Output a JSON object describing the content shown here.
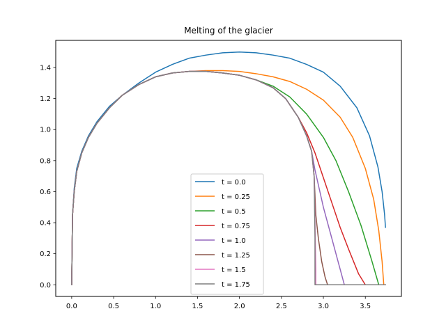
{
  "chart_data": {
    "type": "line",
    "title": "Melting of the glacier",
    "xlabel": "",
    "ylabel": "",
    "xlim": [
      -0.19,
      3.93
    ],
    "ylim": [
      -0.075,
      1.575
    ],
    "xticks": [
      0.0,
      0.5,
      1.0,
      1.5,
      2.0,
      2.5,
      3.0,
      3.5
    ],
    "xtick_labels": [
      "0.0",
      "0.5",
      "1.0",
      "1.5",
      "2.0",
      "2.5",
      "3.0",
      "3.5"
    ],
    "yticks": [
      0.0,
      0.2,
      0.4,
      0.6,
      0.8,
      1.0,
      1.2,
      1.4
    ],
    "ytick_labels": [
      "0.0",
      "0.2",
      "0.4",
      "0.6",
      "0.8",
      "1.0",
      "1.2",
      "1.4"
    ],
    "grid": false,
    "legend_position": "bottom-center",
    "series": [
      {
        "name": "t = 0.0",
        "color": "#1f77b4",
        "points": [
          [
            0.0,
            0.0
          ],
          [
            0.01,
            0.45
          ],
          [
            0.03,
            0.62
          ],
          [
            0.06,
            0.75
          ],
          [
            0.12,
            0.86
          ],
          [
            0.2,
            0.96
          ],
          [
            0.3,
            1.05
          ],
          [
            0.45,
            1.15
          ],
          [
            0.6,
            1.22
          ],
          [
            0.8,
            1.3
          ],
          [
            1.0,
            1.37
          ],
          [
            1.2,
            1.42
          ],
          [
            1.4,
            1.46
          ],
          [
            1.6,
            1.48
          ],
          [
            1.8,
            1.495
          ],
          [
            2.0,
            1.5
          ],
          [
            2.2,
            1.495
          ],
          [
            2.4,
            1.48
          ],
          [
            2.6,
            1.46
          ],
          [
            2.8,
            1.42
          ],
          [
            3.0,
            1.37
          ],
          [
            3.2,
            1.28
          ],
          [
            3.4,
            1.14
          ],
          [
            3.55,
            0.96
          ],
          [
            3.65,
            0.76
          ],
          [
            3.7,
            0.6
          ],
          [
            3.73,
            0.45
          ],
          [
            3.74,
            0.37
          ]
        ]
      },
      {
        "name": "t = 0.25",
        "color": "#ff7f0e",
        "points": [
          [
            0.0,
            0.0
          ],
          [
            0.01,
            0.45
          ],
          [
            0.03,
            0.6
          ],
          [
            0.06,
            0.73
          ],
          [
            0.12,
            0.85
          ],
          [
            0.2,
            0.95
          ],
          [
            0.3,
            1.04
          ],
          [
            0.45,
            1.14
          ],
          [
            0.6,
            1.22
          ],
          [
            0.8,
            1.29
          ],
          [
            1.0,
            1.34
          ],
          [
            1.2,
            1.365
          ],
          [
            1.4,
            1.375
          ],
          [
            1.6,
            1.38
          ],
          [
            1.8,
            1.38
          ],
          [
            2.0,
            1.375
          ],
          [
            2.2,
            1.36
          ],
          [
            2.4,
            1.34
          ],
          [
            2.6,
            1.31
          ],
          [
            2.8,
            1.26
          ],
          [
            3.0,
            1.19
          ],
          [
            3.2,
            1.08
          ],
          [
            3.35,
            0.95
          ],
          [
            3.5,
            0.75
          ],
          [
            3.6,
            0.55
          ],
          [
            3.66,
            0.35
          ],
          [
            3.7,
            0.15
          ],
          [
            3.72,
            0.0
          ],
          [
            3.74,
            0.0
          ]
        ]
      },
      {
        "name": "t = 0.5",
        "color": "#2ca02c",
        "points": [
          [
            0.0,
            0.0
          ],
          [
            0.01,
            0.45
          ],
          [
            0.03,
            0.6
          ],
          [
            0.06,
            0.73
          ],
          [
            0.12,
            0.85
          ],
          [
            0.2,
            0.95
          ],
          [
            0.3,
            1.04
          ],
          [
            0.45,
            1.14
          ],
          [
            0.6,
            1.22
          ],
          [
            0.8,
            1.29
          ],
          [
            1.0,
            1.34
          ],
          [
            1.2,
            1.365
          ],
          [
            1.4,
            1.375
          ],
          [
            1.6,
            1.375
          ],
          [
            1.8,
            1.365
          ],
          [
            2.0,
            1.35
          ],
          [
            2.2,
            1.32
          ],
          [
            2.4,
            1.28
          ],
          [
            2.6,
            1.21
          ],
          [
            2.8,
            1.1
          ],
          [
            3.0,
            0.95
          ],
          [
            3.15,
            0.8
          ],
          [
            3.3,
            0.6
          ],
          [
            3.45,
            0.38
          ],
          [
            3.58,
            0.15
          ],
          [
            3.66,
            0.0
          ],
          [
            3.74,
            0.0
          ]
        ]
      },
      {
        "name": "t = 0.75",
        "color": "#d62728",
        "points": [
          [
            0.0,
            0.0
          ],
          [
            0.01,
            0.45
          ],
          [
            0.03,
            0.6
          ],
          [
            0.06,
            0.73
          ],
          [
            0.12,
            0.85
          ],
          [
            0.2,
            0.95
          ],
          [
            0.3,
            1.04
          ],
          [
            0.45,
            1.14
          ],
          [
            0.6,
            1.22
          ],
          [
            0.8,
            1.29
          ],
          [
            1.0,
            1.34
          ],
          [
            1.2,
            1.365
          ],
          [
            1.4,
            1.375
          ],
          [
            1.6,
            1.375
          ],
          [
            1.8,
            1.365
          ],
          [
            2.0,
            1.35
          ],
          [
            2.2,
            1.32
          ],
          [
            2.4,
            1.27
          ],
          [
            2.55,
            1.2
          ],
          [
            2.7,
            1.08
          ],
          [
            2.8,
            0.98
          ],
          [
            2.9,
            0.85
          ],
          [
            3.0,
            0.69
          ],
          [
            3.1,
            0.53
          ],
          [
            3.2,
            0.37
          ],
          [
            3.3,
            0.23
          ],
          [
            3.42,
            0.07
          ],
          [
            3.5,
            0.0
          ],
          [
            3.74,
            0.0
          ]
        ]
      },
      {
        "name": "t = 1.0",
        "color": "#9467bd",
        "points": [
          [
            0.0,
            0.0
          ],
          [
            0.01,
            0.45
          ],
          [
            0.03,
            0.6
          ],
          [
            0.06,
            0.73
          ],
          [
            0.12,
            0.85
          ],
          [
            0.2,
            0.95
          ],
          [
            0.3,
            1.04
          ],
          [
            0.45,
            1.14
          ],
          [
            0.6,
            1.22
          ],
          [
            0.8,
            1.29
          ],
          [
            1.0,
            1.34
          ],
          [
            1.2,
            1.365
          ],
          [
            1.4,
            1.375
          ],
          [
            1.6,
            1.375
          ],
          [
            1.8,
            1.365
          ],
          [
            2.0,
            1.35
          ],
          [
            2.2,
            1.32
          ],
          [
            2.4,
            1.27
          ],
          [
            2.55,
            1.2
          ],
          [
            2.7,
            1.08
          ],
          [
            2.8,
            0.96
          ],
          [
            2.86,
            0.86
          ],
          [
            2.9,
            0.74
          ],
          [
            2.95,
            0.62
          ],
          [
            3.0,
            0.5
          ],
          [
            3.05,
            0.4
          ],
          [
            3.1,
            0.3
          ],
          [
            3.15,
            0.2
          ],
          [
            3.2,
            0.1
          ],
          [
            3.25,
            0.0
          ],
          [
            3.74,
            0.0
          ]
        ]
      },
      {
        "name": "t = 1.25",
        "color": "#8c564b",
        "points": [
          [
            0.0,
            0.0
          ],
          [
            0.01,
            0.45
          ],
          [
            0.03,
            0.6
          ],
          [
            0.06,
            0.73
          ],
          [
            0.12,
            0.85
          ],
          [
            0.2,
            0.95
          ],
          [
            0.3,
            1.04
          ],
          [
            0.45,
            1.14
          ],
          [
            0.6,
            1.22
          ],
          [
            0.8,
            1.29
          ],
          [
            1.0,
            1.34
          ],
          [
            1.2,
            1.365
          ],
          [
            1.4,
            1.375
          ],
          [
            1.6,
            1.375
          ],
          [
            1.8,
            1.365
          ],
          [
            2.0,
            1.35
          ],
          [
            2.2,
            1.32
          ],
          [
            2.4,
            1.27
          ],
          [
            2.55,
            1.2
          ],
          [
            2.7,
            1.08
          ],
          [
            2.8,
            0.96
          ],
          [
            2.86,
            0.86
          ],
          [
            2.89,
            0.7
          ],
          [
            2.91,
            0.45
          ],
          [
            2.94,
            0.3
          ],
          [
            2.98,
            0.15
          ],
          [
            3.02,
            0.05
          ],
          [
            3.05,
            0.0
          ],
          [
            3.74,
            0.0
          ]
        ]
      },
      {
        "name": "t = 1.5",
        "color": "#e377c2",
        "points": [
          [
            0.0,
            0.0
          ],
          [
            0.01,
            0.45
          ],
          [
            0.03,
            0.6
          ],
          [
            0.06,
            0.73
          ],
          [
            0.12,
            0.85
          ],
          [
            0.2,
            0.95
          ],
          [
            0.3,
            1.04
          ],
          [
            0.45,
            1.14
          ],
          [
            0.6,
            1.22
          ],
          [
            0.8,
            1.29
          ],
          [
            1.0,
            1.34
          ],
          [
            1.2,
            1.365
          ],
          [
            1.4,
            1.375
          ],
          [
            1.6,
            1.375
          ],
          [
            1.8,
            1.365
          ],
          [
            2.0,
            1.35
          ],
          [
            2.2,
            1.32
          ],
          [
            2.4,
            1.27
          ],
          [
            2.55,
            1.2
          ],
          [
            2.7,
            1.08
          ],
          [
            2.8,
            0.96
          ],
          [
            2.86,
            0.86
          ],
          [
            2.89,
            0.7
          ],
          [
            2.9,
            0.4
          ],
          [
            2.91,
            0.1
          ],
          [
            2.91,
            0.0
          ],
          [
            3.74,
            0.0
          ]
        ]
      },
      {
        "name": "t = 1.75",
        "color": "#7f7f7f",
        "points": [
          [
            0.0,
            0.0
          ],
          [
            0.01,
            0.45
          ],
          [
            0.03,
            0.6
          ],
          [
            0.06,
            0.73
          ],
          [
            0.12,
            0.85
          ],
          [
            0.2,
            0.95
          ],
          [
            0.3,
            1.04
          ],
          [
            0.45,
            1.14
          ],
          [
            0.6,
            1.22
          ],
          [
            0.8,
            1.29
          ],
          [
            1.0,
            1.34
          ],
          [
            1.2,
            1.365
          ],
          [
            1.4,
            1.375
          ],
          [
            1.6,
            1.375
          ],
          [
            1.8,
            1.365
          ],
          [
            2.0,
            1.35
          ],
          [
            2.2,
            1.32
          ],
          [
            2.4,
            1.27
          ],
          [
            2.55,
            1.2
          ],
          [
            2.7,
            1.08
          ],
          [
            2.8,
            0.96
          ],
          [
            2.86,
            0.86
          ],
          [
            2.89,
            0.7
          ],
          [
            2.9,
            0.3
          ],
          [
            2.9,
            0.0
          ],
          [
            3.74,
            0.0
          ]
        ]
      }
    ]
  }
}
